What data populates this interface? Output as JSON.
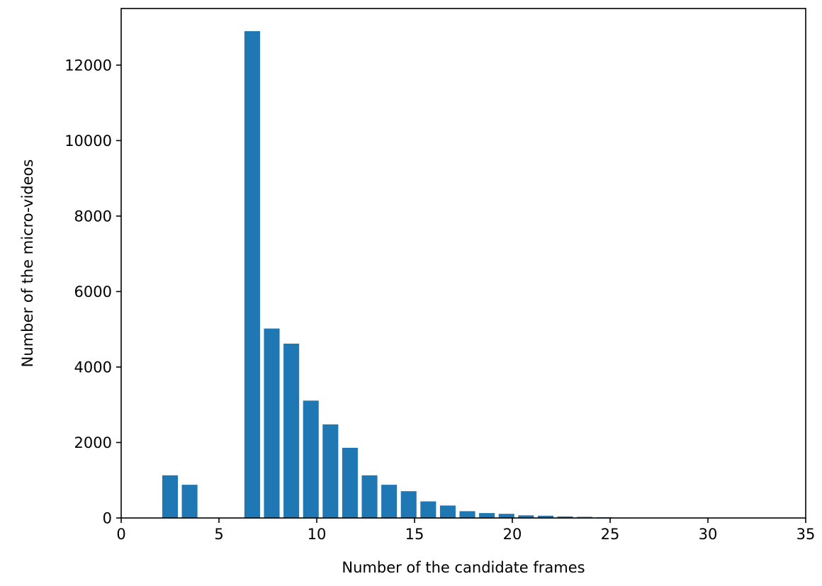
{
  "chart_data": {
    "type": "bar",
    "xlabel": "Number of the candidate frames",
    "ylabel": "Number of the micro-videos",
    "xlim": [
      0,
      35
    ],
    "ylim": [
      0,
      13500
    ],
    "xticks": [
      0,
      5,
      10,
      15,
      20,
      25,
      30,
      35
    ],
    "yticks": [
      0,
      2000,
      4000,
      6000,
      8000,
      10000,
      12000
    ],
    "grid": false,
    "bar_color": "#1f77b4",
    "x": [
      2.5,
      3.5,
      6.7,
      7.7,
      8.7,
      9.7,
      10.7,
      11.7,
      12.7,
      13.7,
      14.7,
      15.7,
      16.7,
      17.7,
      18.7,
      19.7,
      20.7,
      21.7,
      22.7,
      23.7,
      24.7,
      25.7
    ],
    "values": [
      1130,
      880,
      12900,
      5020,
      4620,
      3110,
      2480,
      1860,
      1130,
      880,
      710,
      440,
      330,
      180,
      130,
      110,
      70,
      60,
      40,
      30,
      20,
      10
    ]
  }
}
